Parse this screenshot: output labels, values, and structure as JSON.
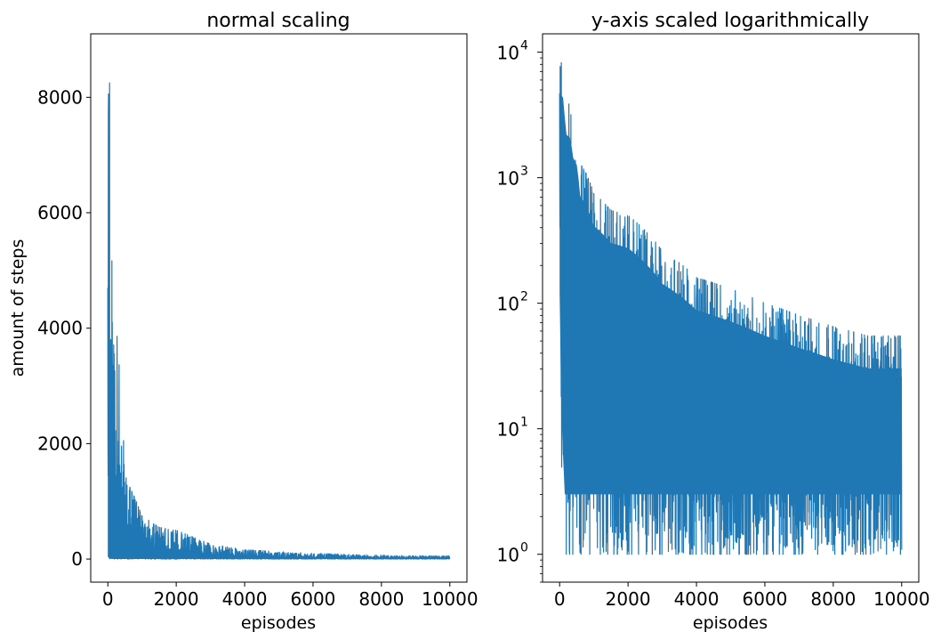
{
  "chart_data": [
    {
      "type": "line",
      "title": "normal scaling",
      "xlabel": "episodes",
      "ylabel": "amount of steps",
      "yscale": "linear",
      "xlim": [
        -500,
        10500
      ],
      "ylim": [
        -400,
        9100
      ],
      "xticks": [
        0,
        2000,
        4000,
        6000,
        8000,
        10000
      ],
      "yticks": [
        0,
        2000,
        4000,
        6000,
        8000
      ],
      "grid": false,
      "legend": "none",
      "color": "#1f77b4",
      "envelope": {
        "x": [
          0,
          20,
          50,
          100,
          150,
          200,
          300,
          400,
          500,
          600,
          800,
          1000,
          1500,
          2000,
          3000,
          4000,
          5000,
          6000,
          7000,
          8000,
          9000,
          10000
        ],
        "upper": [
          4700,
          8700,
          8250,
          7900,
          5500,
          4000,
          3800,
          2600,
          2300,
          1300,
          1050,
          750,
          550,
          500,
          260,
          160,
          130,
          100,
          80,
          65,
          55,
          55
        ],
        "lower": [
          40,
          10,
          5,
          2,
          1,
          1,
          1,
          1,
          1,
          1,
          1,
          1,
          1,
          1,
          1,
          1,
          1,
          1,
          1,
          1,
          1,
          1
        ]
      }
    },
    {
      "type": "line",
      "title": "y-axis scaled logarithmically",
      "xlabel": "episodes",
      "ylabel": "",
      "yscale": "log",
      "xlim": [
        -500,
        10500
      ],
      "ylim": [
        0.6,
        14000
      ],
      "xticks": [
        0,
        2000,
        4000,
        6000,
        8000,
        10000
      ],
      "yticks": [
        {
          "value": 1,
          "base": "10",
          "exp": "0"
        },
        {
          "value": 10,
          "base": "10",
          "exp": "1"
        },
        {
          "value": 100,
          "base": "10",
          "exp": "2"
        },
        {
          "value": 1000,
          "base": "10",
          "exp": "3"
        },
        {
          "value": 10000,
          "base": "10",
          "exp": "4"
        }
      ],
      "grid": false,
      "legend": "none",
      "color": "#1f77b4",
      "envelope": {
        "x": [
          0,
          20,
          50,
          100,
          150,
          200,
          300,
          400,
          500,
          600,
          800,
          1000,
          1500,
          2000,
          3000,
          4000,
          5000,
          6000,
          7000,
          8000,
          9000,
          10000
        ],
        "upper": [
          4700,
          8700,
          8250,
          7900,
          5500,
          4000,
          3800,
          2600,
          2300,
          1300,
          1050,
          750,
          550,
          500,
          260,
          160,
          130,
          100,
          80,
          65,
          55,
          55
        ],
        "lower": [
          40,
          10,
          5,
          2,
          1,
          1,
          1,
          1,
          1,
          1,
          1,
          1,
          1,
          1,
          1,
          1,
          1,
          1,
          1,
          1,
          1,
          1
        ]
      }
    }
  ]
}
